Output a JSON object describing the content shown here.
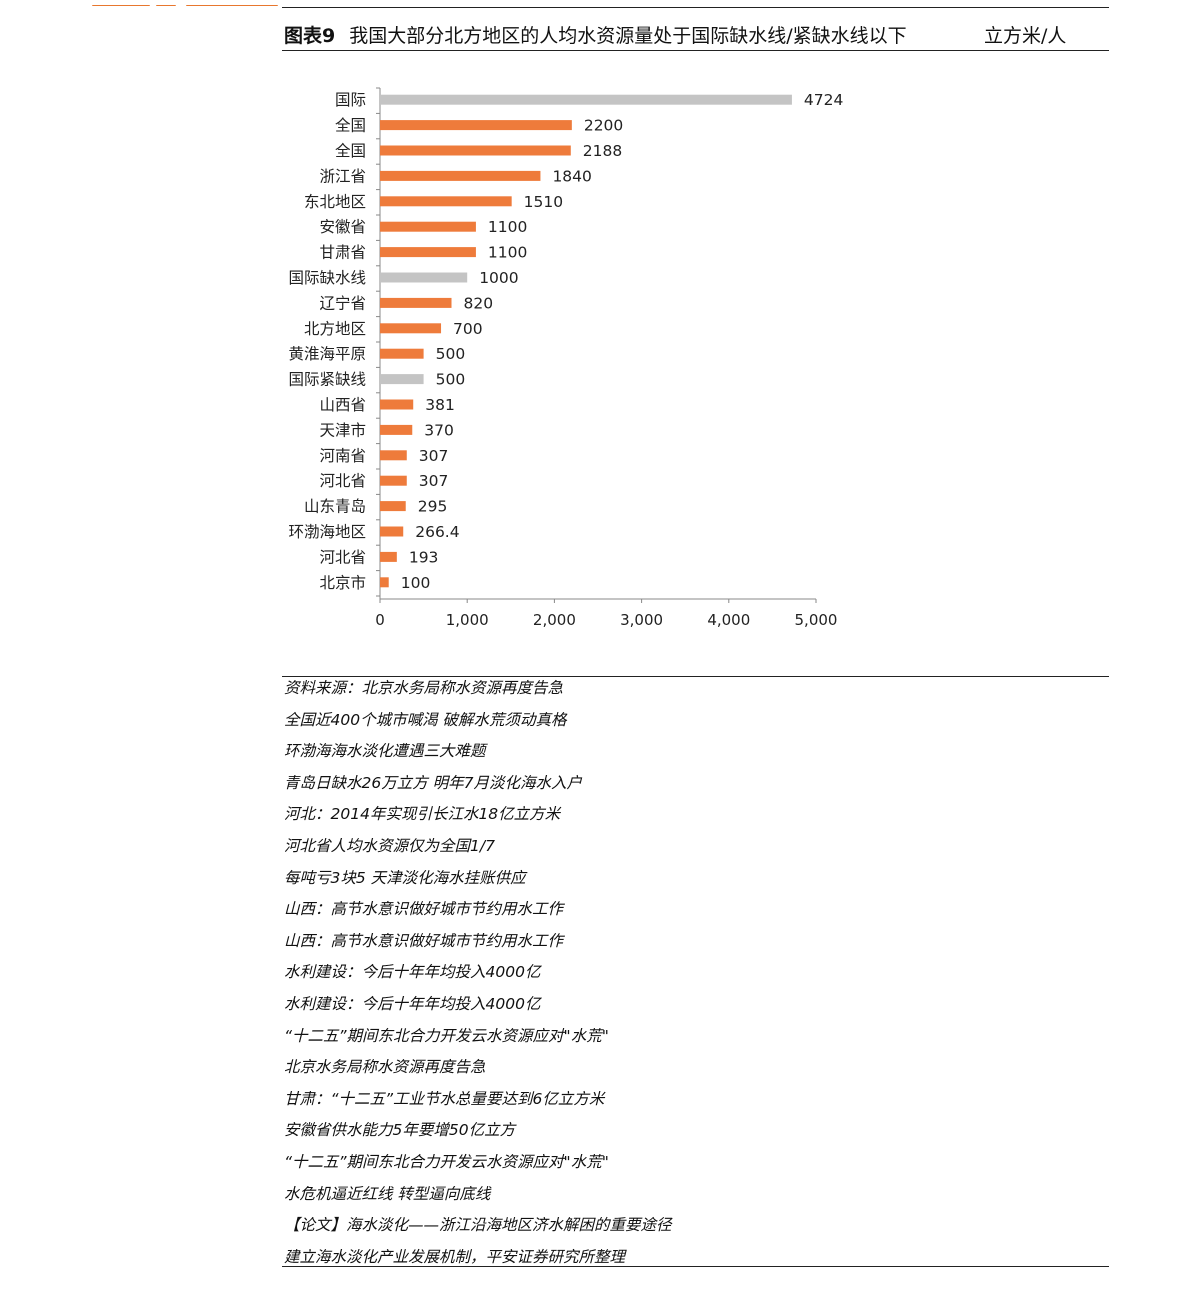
{
  "figure": {
    "label": "图表9",
    "title": "我国大部分北方地区的人均水资源量处于国际缺水线/紧缺水线以下",
    "unit": "立方米/人"
  },
  "colors": {
    "orange": "#ee7b3b",
    "gray": "#c4c4c4",
    "header_fragment": "#e8772e"
  },
  "chart_data": {
    "type": "bar",
    "orientation": "horizontal",
    "categories": [
      "国际",
      "全国",
      "全国",
      "浙江省",
      "东北地区",
      "安徽省",
      "甘肃省",
      "国际缺水线",
      "辽宁省",
      "北方地区",
      "黄淮海平原",
      "国际紧缺线",
      "山西省",
      "天津市",
      "河南省",
      "河北省",
      "山东青岛",
      "环渤海地区",
      "河北省",
      "北京市"
    ],
    "values": [
      4724,
      2200,
      2188,
      1840,
      1510,
      1100,
      1100,
      1000,
      820,
      700,
      500,
      500,
      381,
      370,
      307,
      307,
      295,
      266.4,
      193,
      100
    ],
    "value_labels": [
      "4724",
      "2200",
      "2188",
      "1840",
      "1510",
      "1100",
      "1100",
      "1000",
      "820",
      "700",
      "500",
      "500",
      "381",
      "370",
      "307",
      "307",
      "295",
      "266.4",
      "193",
      "100"
    ],
    "bar_colors": [
      "gray",
      "orange",
      "orange",
      "orange",
      "orange",
      "orange",
      "orange",
      "gray",
      "orange",
      "orange",
      "orange",
      "gray",
      "orange",
      "orange",
      "orange",
      "orange",
      "orange",
      "orange",
      "orange",
      "orange"
    ],
    "xlim": [
      0,
      5000
    ],
    "xticks": [
      0,
      1000,
      2000,
      3000,
      4000,
      5000
    ],
    "xtick_labels": [
      "0",
      "1,000",
      "2,000",
      "3,000",
      "4,000",
      "5,000"
    ],
    "grid": false,
    "legend": "none"
  },
  "sources": [
    "资料来源：北京水务局称水资源再度告急",
    "全国近400个城市喊渴 破解水荒须动真格",
    "环渤海海水淡化遭遇三大难题",
    "青岛日缺水26万立方 明年7月淡化海水入户",
    "河北：2014年实现引长江水18亿立方米",
    "河北省人均水资源仅为全国1/7",
    "每吨亏3块5 天津淡化海水挂账供应",
    "山西：高节水意识做好城市节约用水工作",
    "山西：高节水意识做好城市节约用水工作",
    "水利建设：今后十年年均投入4000亿",
    "水利建设：今后十年年均投入4000亿",
    "“十二五”期间东北合力开发云水资源应对\"水荒\"",
    "北京水务局称水资源再度告急",
    "甘肃：“十二五”工业节水总量要达到6亿立方米",
    "安徽省供水能力5年要增50亿立方",
    "“十二五”期间东北合力开发云水资源应对\"水荒\"",
    "水危机逼近红线 转型逼向底线",
    "【论文】海水淡化——浙江沿海地区济水解困的重要途径",
    "建立海水淡化产业发展机制，平安证券研究所整理"
  ]
}
